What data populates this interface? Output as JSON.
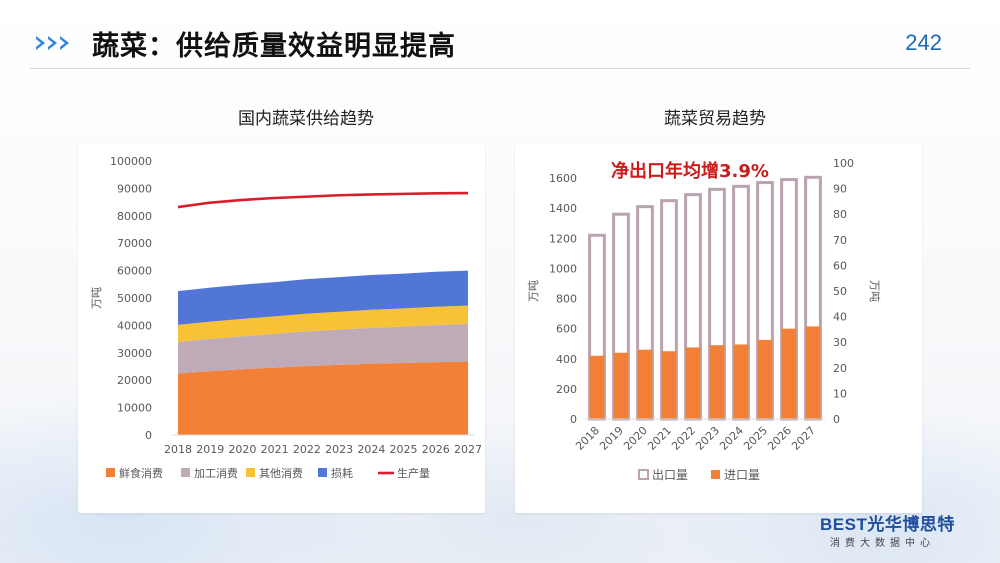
{
  "slide": {
    "title": "蔬菜：供给质量效益明显提高",
    "page_number": "242",
    "brand_name": "BEST光华博思特",
    "brand_tagline": "消费大数据中心"
  },
  "colors": {
    "accent": "#2e86de",
    "fresh": "#f28037",
    "processing": "#bfaab8",
    "other": "#f8c237",
    "loss": "#5276d6",
    "production": "#d81e2b",
    "export": "#b9a3b0",
    "import": "#f28037",
    "annotation": "#cc1b1b"
  },
  "chart_data": [
    {
      "type": "area",
      "title": "国内蔬菜供给趋势",
      "x": [
        "2018",
        "2019",
        "2020",
        "2021",
        "2022",
        "2023",
        "2024",
        "2025",
        "2026",
        "2027"
      ],
      "ylabel": "万吨",
      "ylim": [
        0,
        100000
      ],
      "yticks": [
        0,
        10000,
        20000,
        30000,
        40000,
        50000,
        60000,
        70000,
        80000,
        90000,
        100000
      ],
      "stacked": true,
      "series": [
        {
          "name": "鲜食消费",
          "kind": "area",
          "color": "#f28037",
          "values": [
            22500,
            23300,
            24000,
            24600,
            25200,
            25600,
            26000,
            26300,
            26600,
            26800
          ]
        },
        {
          "name": "加工消费",
          "kind": "area",
          "color": "#bfaab8",
          "values": [
            11500,
            11800,
            12000,
            12300,
            12600,
            12900,
            13100,
            13300,
            13500,
            13700
          ]
        },
        {
          "name": "其他消费",
          "kind": "area",
          "color": "#f8c237",
          "values": [
            6200,
            6300,
            6400,
            6400,
            6500,
            6500,
            6600,
            6600,
            6700,
            6700
          ]
        },
        {
          "name": "损耗",
          "kind": "area",
          "color": "#5276d6",
          "values": [
            12300,
            12400,
            12500,
            12500,
            12600,
            12600,
            12700,
            12700,
            12800,
            12800
          ]
        },
        {
          "name": "生产量",
          "kind": "line",
          "color": "#d81e2b",
          "values": [
            83200,
            84800,
            85800,
            86500,
            87000,
            87500,
            87800,
            88000,
            88200,
            88300
          ]
        }
      ],
      "legend": "bottom"
    },
    {
      "type": "bar",
      "title": "蔬菜贸易趋势",
      "annotation": "净出口年均增3.9%",
      "categories": [
        "2018",
        "2019",
        "2020",
        "2021",
        "2022",
        "2023",
        "2024",
        "2025",
        "2026",
        "2027"
      ],
      "ylabel": "万吨",
      "y2label": "万吨",
      "ylim": [
        0,
        1700
      ],
      "yticks": [
        0,
        200,
        400,
        600,
        800,
        1000,
        1200,
        1400,
        1600
      ],
      "y2lim": [
        0,
        100
      ],
      "y2ticks": [
        0,
        5,
        10,
        15,
        20,
        25,
        30,
        35,
        40,
        45,
        50,
        55,
        60,
        65,
        70,
        75,
        80,
        85,
        90,
        95,
        100
      ],
      "series": [
        {
          "name": "出口量",
          "color": "#b9a3b0",
          "style": "outline",
          "values": [
            1220,
            1360,
            1410,
            1450,
            1490,
            1525,
            1545,
            1570,
            1590,
            1605
          ]
        },
        {
          "name": "进口量",
          "color": "#f28037",
          "style": "filled",
          "values": [
            420,
            440,
            460,
            450,
            475,
            490,
            495,
            525,
            600,
            615
          ]
        }
      ],
      "legend": "bottom"
    }
  ]
}
